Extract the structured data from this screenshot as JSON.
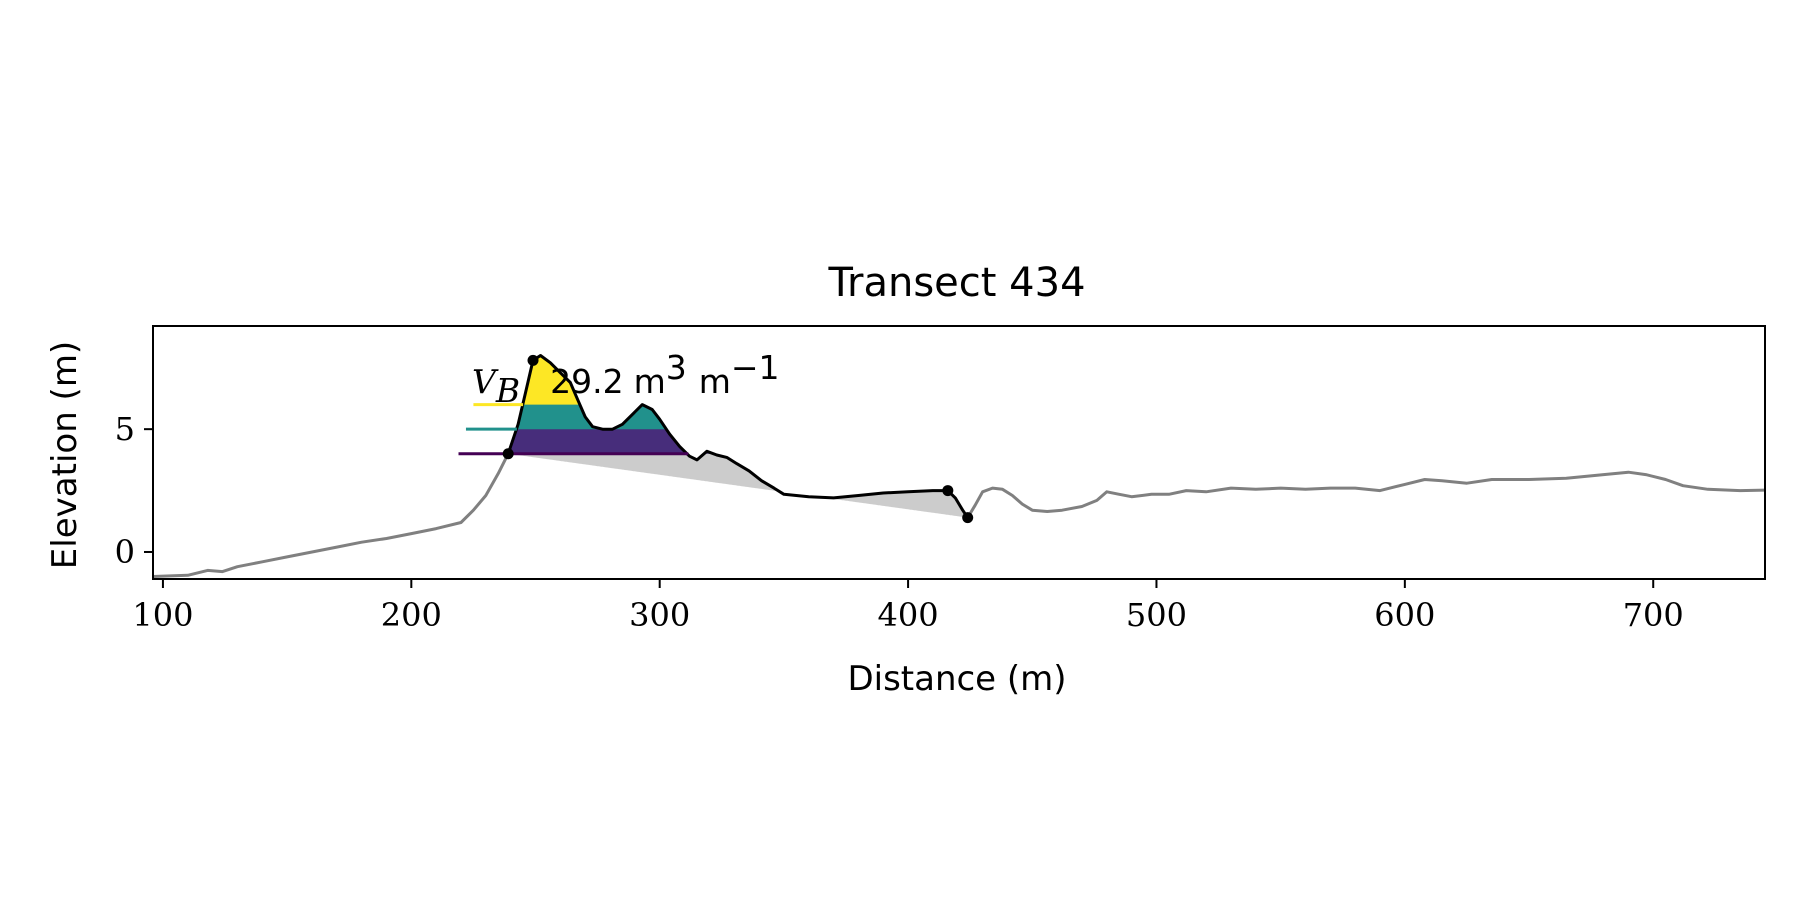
{
  "chart_data": {
    "type": "line",
    "title": "Transect 434",
    "xlabel": "Distance (m)",
    "ylabel": "Elevation (m)",
    "xlim": [
      96,
      745
    ],
    "ylim": [
      -1.1,
      9.2
    ],
    "xticks": [
      100,
      200,
      300,
      400,
      500,
      600,
      700
    ],
    "yticks": [
      0,
      5
    ],
    "grid": false,
    "annotation": {
      "symbol": "V",
      "subscript": "B",
      "value": "29.2",
      "unit": "m",
      "unit_exp": "3",
      "per": "m",
      "per_exp": "−1"
    },
    "colors": {
      "profile": "#808080",
      "dune": "#000000",
      "gray_fill": "#cccccc",
      "yellow": "#fde725",
      "teal": "#21918c",
      "purple": "#472d7b",
      "dark_purple": "#440154"
    },
    "levels": [
      {
        "elevation": 6.0,
        "color": "#fde725",
        "line_start": 225
      },
      {
        "elevation": 5.0,
        "color": "#21918c",
        "line_start": 222
      },
      {
        "elevation": 4.0,
        "color": "#440154",
        "line_start": 219
      }
    ],
    "profile": [
      [
        96,
        -1.0
      ],
      [
        110,
        -0.95
      ],
      [
        118,
        -0.75
      ],
      [
        124,
        -0.8
      ],
      [
        130,
        -0.6
      ],
      [
        140,
        -0.4
      ],
      [
        150,
        -0.2
      ],
      [
        160,
        0.0
      ],
      [
        170,
        0.2
      ],
      [
        180,
        0.4
      ],
      [
        190,
        0.55
      ],
      [
        200,
        0.75
      ],
      [
        210,
        0.95
      ],
      [
        220,
        1.2
      ],
      [
        225,
        1.7
      ],
      [
        230,
        2.3
      ],
      [
        235,
        3.2
      ],
      [
        239,
        4.0
      ]
    ],
    "dune": [
      [
        239,
        4.0
      ],
      [
        243,
        5.2
      ],
      [
        246,
        6.5
      ],
      [
        249,
        7.8
      ],
      [
        252,
        8.0
      ],
      [
        256,
        7.7
      ],
      [
        260,
        7.3
      ],
      [
        264,
        6.9
      ],
      [
        267,
        6.2
      ],
      [
        270,
        5.5
      ],
      [
        273,
        5.1
      ],
      [
        277,
        5.0
      ],
      [
        281,
        5.0
      ],
      [
        285,
        5.2
      ],
      [
        289,
        5.6
      ],
      [
        293,
        6.0
      ],
      [
        297,
        5.8
      ],
      [
        300,
        5.4
      ],
      [
        304,
        4.8
      ],
      [
        308,
        4.3
      ],
      [
        312,
        3.9
      ],
      [
        315,
        3.75
      ],
      [
        319,
        4.1
      ],
      [
        323,
        3.95
      ],
      [
        327,
        3.85
      ],
      [
        331,
        3.6
      ],
      [
        336,
        3.3
      ],
      [
        341,
        2.9
      ],
      [
        346,
        2.6
      ],
      [
        350,
        2.35
      ],
      [
        360,
        2.25
      ],
      [
        370,
        2.2
      ],
      [
        380,
        2.3
      ],
      [
        390,
        2.4
      ],
      [
        400,
        2.45
      ],
      [
        410,
        2.5
      ],
      [
        416,
        2.5
      ],
      [
        419,
        2.2
      ],
      [
        422,
        1.7
      ],
      [
        424,
        1.4
      ]
    ],
    "profile_right": [
      [
        424,
        1.4
      ],
      [
        427,
        1.9
      ],
      [
        430,
        2.45
      ],
      [
        434,
        2.6
      ],
      [
        438,
        2.55
      ],
      [
        442,
        2.3
      ],
      [
        446,
        1.95
      ],
      [
        450,
        1.7
      ],
      [
        456,
        1.65
      ],
      [
        462,
        1.7
      ],
      [
        470,
        1.85
      ],
      [
        476,
        2.1
      ],
      [
        480,
        2.45
      ],
      [
        485,
        2.35
      ],
      [
        490,
        2.25
      ],
      [
        498,
        2.35
      ],
      [
        505,
        2.35
      ],
      [
        512,
        2.5
      ],
      [
        520,
        2.45
      ],
      [
        530,
        2.6
      ],
      [
        540,
        2.55
      ],
      [
        550,
        2.6
      ],
      [
        560,
        2.55
      ],
      [
        570,
        2.6
      ],
      [
        580,
        2.6
      ],
      [
        590,
        2.5
      ],
      [
        600,
        2.75
      ],
      [
        608,
        2.95
      ],
      [
        615,
        2.9
      ],
      [
        625,
        2.8
      ],
      [
        635,
        2.95
      ],
      [
        650,
        2.95
      ],
      [
        665,
        3.0
      ],
      [
        680,
        3.15
      ],
      [
        690,
        3.25
      ],
      [
        697,
        3.15
      ],
      [
        705,
        2.95
      ],
      [
        712,
        2.7
      ],
      [
        722,
        2.55
      ],
      [
        735,
        2.5
      ],
      [
        745,
        2.52
      ]
    ],
    "toe_line": [
      [
        239,
        4.0
      ],
      [
        424,
        1.4
      ]
    ],
    "markers": [
      [
        239,
        4.0
      ],
      [
        249,
        7.8
      ],
      [
        416,
        2.5
      ],
      [
        424,
        1.4
      ]
    ]
  }
}
